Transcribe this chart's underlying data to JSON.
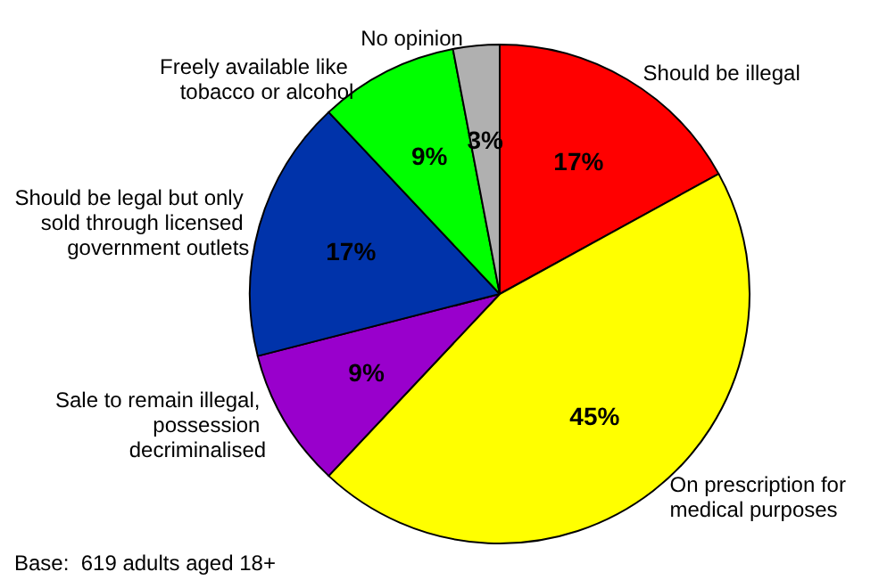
{
  "chart_data": {
    "type": "pie",
    "categories": [
      "Should be illegal",
      "On prescription for medical purposes",
      "Sale to remain illegal, possession decriminalised",
      "Should be legal but only sold through licensed government outlets",
      "Freely available like tobacco or alcohol",
      "No opinion"
    ],
    "values": [
      17,
      45,
      9,
      17,
      9,
      3
    ],
    "value_labels": [
      "17%",
      "45%",
      "9%",
      "17%",
      "9%",
      "3%"
    ],
    "colors": [
      "#ff0000",
      "#ffff00",
      "#9900cc",
      "#0033aa",
      "#00ff00",
      "#b0b0b0"
    ],
    "legend": false,
    "annotations": [
      "Base:  619 adults aged 18+"
    ]
  }
}
